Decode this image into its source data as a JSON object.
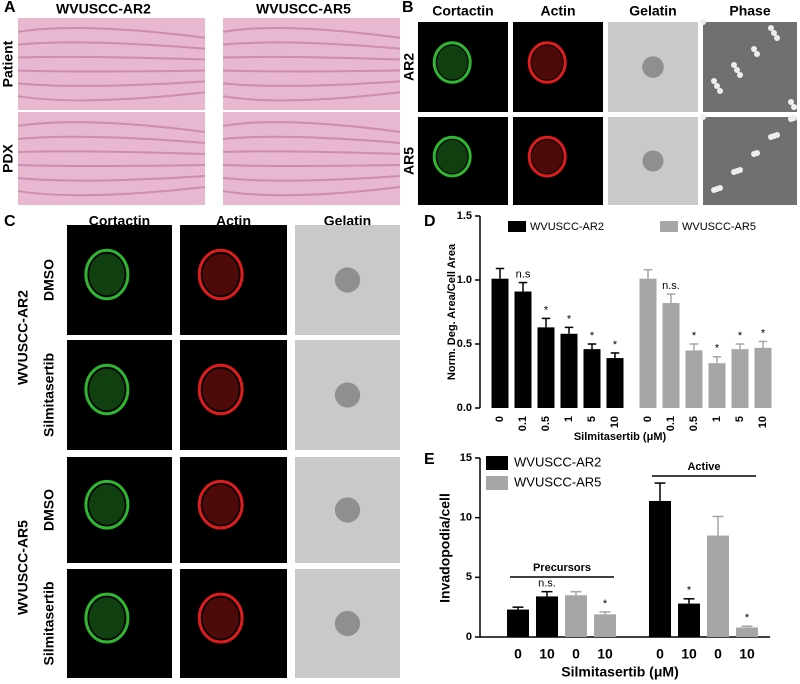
{
  "panels": {
    "A": {
      "letter": "A",
      "columns": [
        "WVUSCC-AR2",
        "WVUSCC-AR5"
      ],
      "rows": [
        "Patient",
        "PDX"
      ]
    },
    "B": {
      "letter": "B",
      "columns": [
        "Cortactin",
        "Actin",
        "Gelatin",
        "Phase"
      ],
      "rows": [
        "AR2",
        "AR5"
      ]
    },
    "C": {
      "letter": "C",
      "columns": [
        "Cortactin",
        "Actin",
        "Gelatin"
      ],
      "groups": [
        {
          "name": "WVUSCC-AR2",
          "rows": [
            "DMSO",
            "Silmitasertib"
          ]
        },
        {
          "name": "WVUSCC-AR5",
          "rows": [
            "DMSO",
            "Silmitasertib"
          ]
        }
      ]
    }
  },
  "chart_data": [
    {
      "type": "bar",
      "label": "D",
      "ylabel": "Norm. Deg. Area/Cell Area",
      "xlabel": "Silmitasertib (μM)",
      "categories": [
        "0",
        "0.1",
        "0.5",
        "1",
        "5",
        "10"
      ],
      "series": [
        {
          "name": "WVUSCC-AR2",
          "color": "#000000",
          "values": [
            1.01,
            0.91,
            0.63,
            0.58,
            0.46,
            0.39
          ],
          "errors": [
            0.08,
            0.07,
            0.07,
            0.05,
            0.04,
            0.04
          ],
          "annotations": [
            null,
            "n.s",
            "*",
            "*",
            "*",
            "*"
          ]
        },
        {
          "name": "WVUSCC-AR5",
          "color": "#a6a6a6",
          "values": [
            1.01,
            0.82,
            0.45,
            0.35,
            0.46,
            0.47
          ],
          "errors": [
            0.07,
            0.07,
            0.05,
            0.05,
            0.04,
            0.05
          ],
          "annotations": [
            null,
            "n.s.",
            "*",
            "*",
            "*",
            "*"
          ]
        }
      ],
      "ylim": [
        0,
        1.5
      ],
      "yticks": [
        {
          "value": 0,
          "label": "0.0"
        },
        0.5,
        {
          "value": 1,
          "label": "1.0"
        },
        1.5
      ],
      "legend": "top"
    },
    {
      "type": "bar",
      "label": "E",
      "ylabel": "Invadopodia/cell",
      "xlabel": "Silmitasertib (μM)",
      "groups": [
        "Precursors",
        "Active"
      ],
      "categories": [
        "0",
        "10"
      ],
      "series": [
        {
          "name": "WVUSCC-AR2",
          "color": "#000000",
          "values": [
            [
              2.3,
              3.4
            ],
            [
              11.4,
              2.8
            ]
          ],
          "errors": [
            [
              0.2,
              0.4
            ],
            [
              1.5,
              0.4
            ]
          ],
          "annotations": [
            [
              null,
              "n.s."
            ],
            [
              null,
              "*"
            ]
          ]
        },
        {
          "name": "WVUSCC-AR5",
          "color": "#a6a6a6",
          "values": [
            [
              3.5,
              1.9
            ],
            [
              8.5,
              0.8
            ]
          ],
          "errors": [
            [
              0.3,
              0.2
            ],
            [
              1.6,
              0.1
            ]
          ],
          "annotations": [
            [
              null,
              "*"
            ],
            [
              null,
              "*"
            ]
          ]
        }
      ],
      "ylim": [
        0,
        15
      ],
      "yticks": [
        0,
        5,
        10,
        15
      ],
      "legend": "top-left"
    }
  ]
}
